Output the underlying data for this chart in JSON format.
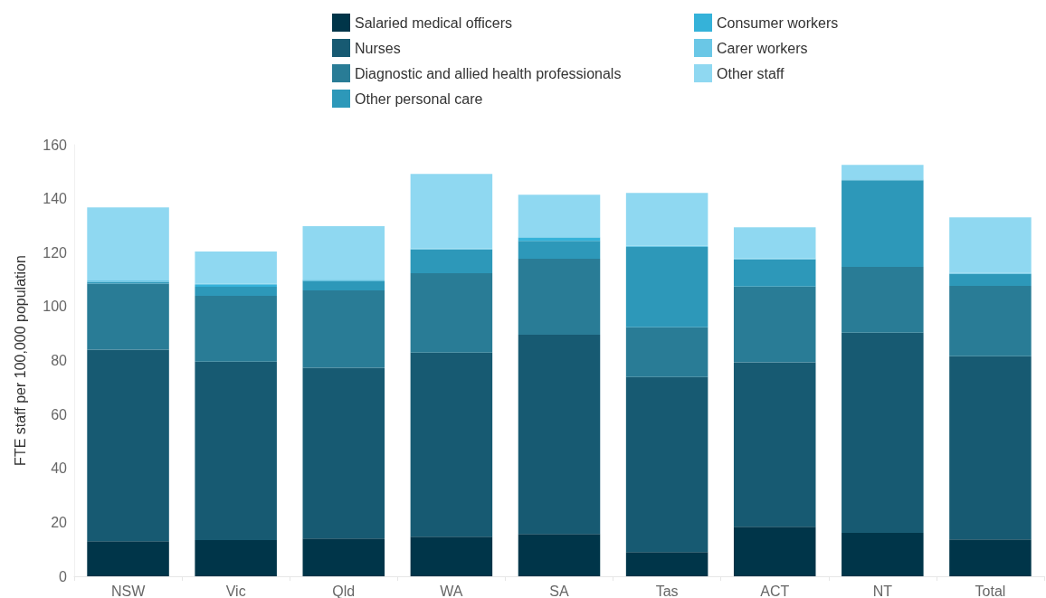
{
  "chart_data": {
    "type": "bar",
    "stacked": true,
    "ylabel": "FTE staff per 100,000 population",
    "categories": [
      "NSW",
      "Vic",
      "Qld",
      "WA",
      "SA",
      "Tas",
      "ACT",
      "NT",
      "Total"
    ],
    "ylim": [
      0,
      160
    ],
    "yticks": [
      0,
      20,
      40,
      60,
      80,
      100,
      120,
      140,
      160
    ],
    "grid": false,
    "legend": "top",
    "series": [
      {
        "name": "Salaried medical officers",
        "color": "#003549",
        "values": [
          13.0,
          13.4,
          14.0,
          14.7,
          15.7,
          9.0,
          18.4,
          16.1,
          13.7
        ]
      },
      {
        "name": "Nurses",
        "color": "#175a72",
        "values": [
          71.0,
          66.2,
          63.3,
          68.2,
          73.9,
          64.9,
          60.9,
          74.2,
          67.9
        ]
      },
      {
        "name": "Diagnostic and allied health professionals",
        "color": "#297c96",
        "values": [
          24.5,
          24.4,
          28.7,
          29.5,
          28.1,
          18.4,
          28.1,
          24.4,
          26.1
        ]
      },
      {
        "name": "Other personal care",
        "color": "#2d98b9",
        "values": [
          0.7,
          3.3,
          3.5,
          8.8,
          6.7,
          29.8,
          10.1,
          32.1,
          4.4
        ]
      },
      {
        "name": "Consumer workers",
        "color": "#35b2d9",
        "values": [
          null,
          0.7,
          0.3,
          0,
          1.1,
          0,
          0,
          0,
          0
        ]
      },
      {
        "name": "Carer workers",
        "color": "#6ac7e6",
        "values": [
          0.5,
          0.4,
          0.2,
          0.3,
          0.3,
          0.4,
          0.3,
          0.4,
          0.4
        ]
      },
      {
        "name": "Other staff",
        "color": "#8fd8f1",
        "values": [
          27.1,
          12.0,
          19.8,
          27.7,
          15.7,
          19.6,
          11.6,
          5.3,
          20.6
        ]
      }
    ]
  }
}
